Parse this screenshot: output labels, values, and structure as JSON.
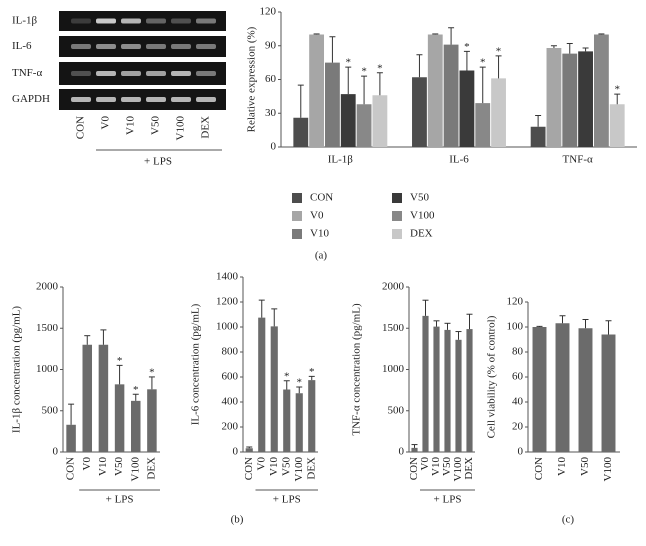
{
  "gel": {
    "row_labels": [
      "IL-1β",
      "IL-6",
      "TNF-α",
      "GAPDH"
    ],
    "lane_labels": [
      "CON",
      "V0",
      "V10",
      "V50",
      "V100",
      "DEX"
    ],
    "group_label": "+ LPS"
  },
  "panel_labels": [
    "(a)",
    "(b)",
    "(c)"
  ],
  "chart_data": [
    {
      "type": "bar",
      "y_label": "Relative expression (%)",
      "categories": [
        "IL-1β",
        "IL-6",
        "TNF-α"
      ],
      "series": [
        {
          "name": "CON",
          "color": "#4d4d4d",
          "values": [
            26,
            62,
            18
          ],
          "errors": [
            29,
            20,
            10
          ],
          "significance": [
            null,
            null,
            null
          ]
        },
        {
          "name": "V0",
          "color": "#a6a6a6",
          "values": [
            100,
            100,
            88
          ],
          "errors": [
            0.5,
            0.5,
            2
          ],
          "significance": [
            null,
            null,
            null
          ]
        },
        {
          "name": "V10",
          "color": "#7a7a7a",
          "values": [
            75,
            91,
            83
          ],
          "errors": [
            23,
            15,
            9
          ],
          "significance": [
            null,
            null,
            null
          ]
        },
        {
          "name": "V50",
          "color": "#3a3a3a",
          "values": [
            47,
            68,
            85
          ],
          "errors": [
            24,
            17,
            3
          ],
          "significance": [
            "*",
            "*",
            null
          ]
        },
        {
          "name": "V100",
          "color": "#888888",
          "values": [
            38,
            39,
            100
          ],
          "errors": [
            25,
            32,
            0.5
          ],
          "significance": [
            "*",
            "*",
            null
          ]
        },
        {
          "name": "DEX",
          "color": "#c8c8c8",
          "values": [
            46,
            61,
            38
          ],
          "errors": [
            20,
            20,
            9
          ],
          "significance": [
            "*",
            "*",
            "*"
          ]
        }
      ],
      "ylim": [
        0,
        120
      ],
      "yticks": [
        0,
        30,
        60,
        90,
        120
      ],
      "legend": "below"
    },
    {
      "type": "bar",
      "y_label": "IL-1β concentration (pg/mL)",
      "categories": [
        "CON",
        "V0",
        "V10",
        "V50",
        "V100",
        "DEX"
      ],
      "group_label": "+ LPS",
      "series": [
        {
          "color": "#6b6b6b",
          "values": [
            330,
            1300,
            1300,
            820,
            620,
            760
          ],
          "errors": [
            250,
            110,
            180,
            230,
            80,
            150
          ],
          "significance": [
            null,
            null,
            null,
            "*",
            "*",
            "*"
          ]
        }
      ],
      "ylim": [
        0,
        2000
      ],
      "yticks": [
        0,
        500,
        1000,
        1500,
        2000
      ]
    },
    {
      "type": "bar",
      "y_label": "IL-6 concentration (pg/mL)",
      "categories": [
        "CON",
        "V0",
        "V10",
        "V50",
        "V100",
        "DEX"
      ],
      "group_label": "+ LPS",
      "series": [
        {
          "color": "#6b6b6b",
          "values": [
            30,
            1075,
            1005,
            500,
            470,
            575
          ],
          "errors": [
            10,
            140,
            140,
            70,
            50,
            30
          ],
          "significance": [
            null,
            null,
            null,
            "*",
            "*",
            "*"
          ]
        }
      ],
      "ylim": [
        0,
        1400
      ],
      "yticks": [
        0,
        200,
        400,
        600,
        800,
        1000,
        1200,
        1400
      ]
    },
    {
      "type": "bar",
      "y_label": "TNF-α concentration (pg/mL)",
      "categories": [
        "CON",
        "V0",
        "V10",
        "V50",
        "V100",
        "DEX"
      ],
      "group_label": "+ LPS",
      "series": [
        {
          "color": "#6b6b6b",
          "values": [
            50,
            1650,
            1520,
            1480,
            1360,
            1490
          ],
          "errors": [
            40,
            190,
            70,
            80,
            100,
            180
          ],
          "significance": [
            null,
            null,
            null,
            null,
            null,
            null
          ]
        }
      ],
      "ylim": [
        0,
        2000
      ],
      "yticks": [
        0,
        500,
        1000,
        1500,
        2000
      ]
    },
    {
      "type": "bar",
      "y_label": "Cell viability (% of control)",
      "categories": [
        "CON",
        "V10",
        "V50",
        "V100"
      ],
      "series": [
        {
          "color": "#6b6b6b",
          "values": [
            100,
            103,
            99,
            94
          ],
          "errors": [
            0.5,
            6,
            7,
            11
          ],
          "significance": [
            null,
            null,
            null,
            null
          ]
        }
      ],
      "ylim": [
        0,
        120
      ],
      "yticks": [
        0,
        20,
        40,
        60,
        80,
        100,
        120
      ]
    }
  ]
}
